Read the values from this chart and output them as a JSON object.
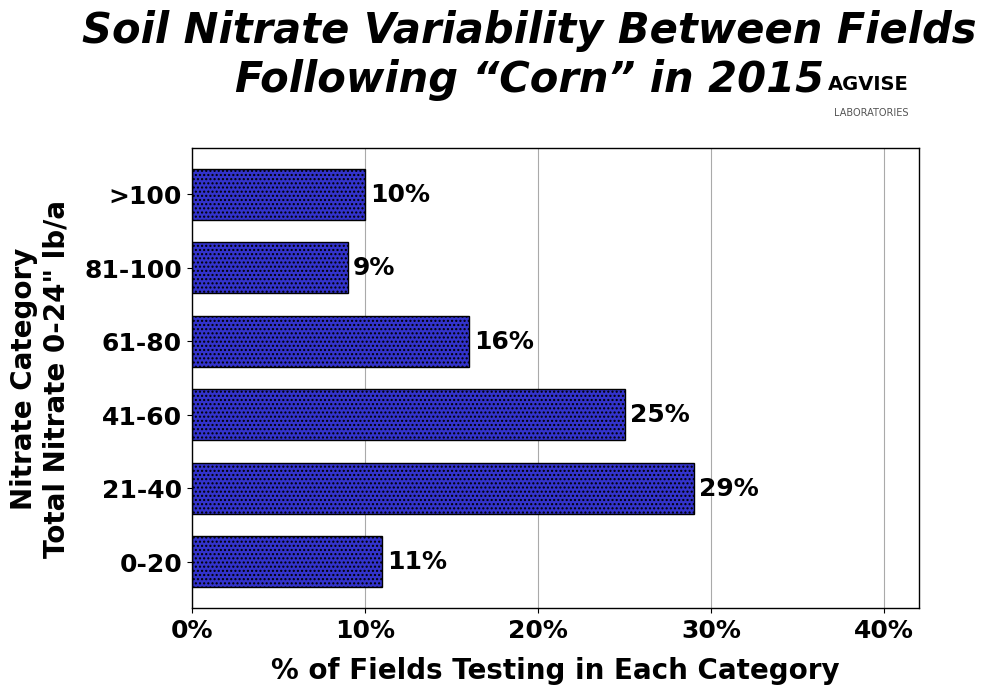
{
  "title_line1": "Soil Nitrate Variability Between Fields",
  "title_line2": "Following “Corn” in 2015",
  "categories": [
    "0-20",
    "21-40",
    "41-60",
    "61-80",
    "81-100",
    ">100"
  ],
  "values": [
    11,
    29,
    25,
    16,
    9,
    10
  ],
  "bar_color_face": "#3333cc",
  "bar_color_edge": "#000000",
  "xlabel": "% of Fields Testing in Each Category",
  "ylabel": "Nitrate Category\nTotal Nitrate 0-24\" lb/a",
  "xlim": [
    0,
    42
  ],
  "xticks": [
    0,
    10,
    20,
    30,
    40
  ],
  "xticklabels": [
    "0%",
    "10%",
    "20%",
    "30%",
    "40%"
  ],
  "grid_color": "#aaaaaa",
  "background_color": "#ffffff",
  "title_fontsize": 30,
  "axis_label_fontsize": 20,
  "tick_fontsize": 18,
  "bar_label_fontsize": 18
}
